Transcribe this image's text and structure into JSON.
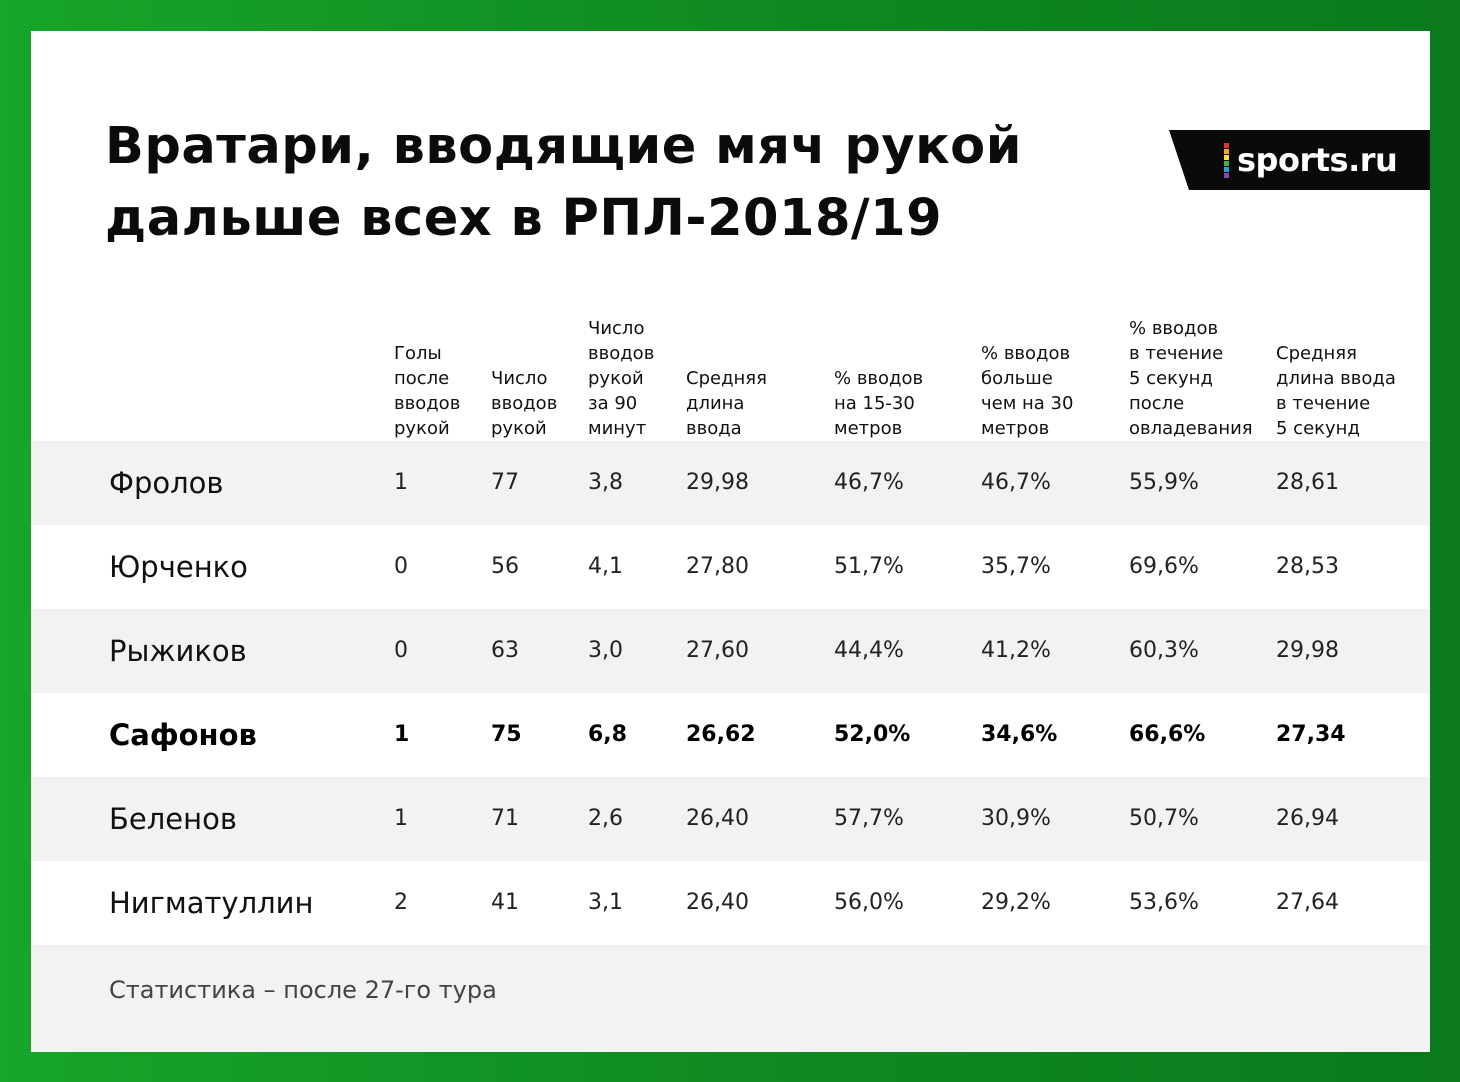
{
  "title_line1": "Вратари, вводящие мяч рукой",
  "title_line2": "дальше всех в РПЛ-2018/19",
  "logo": {
    "text": "sports.ru",
    "icon": "sports-ru-logo",
    "bar_colors": [
      "#e4332b",
      "#f5a623",
      "#f7e13a",
      "#3cb54a",
      "#2a9ee0",
      "#8e44ad"
    ]
  },
  "colors": {
    "frame_green": "#129a26",
    "row_shade": "#f2f2f2",
    "logo_bg": "#0a0a0a"
  },
  "chart_data": {
    "type": "table",
    "title": "Вратари, вводящие мяч рукой дальше всех в РПЛ-2018/19",
    "columns": [
      "",
      "Голы\nпосле\nвводов\nрукой",
      "Число\nвводов\nрукой",
      "Число\nвводов\nрукой\nза 90\nминут",
      "Средняя\nдлина\nввода",
      "% вводов\nна 15-30\nметров",
      "% вводов\nбольше\nчем на 30\nметров",
      "% вводов\nв течение\n5 секунд\nпосле\nовладевания",
      "Средняя\nдлина ввода\nв течение\n5 секунд"
    ],
    "rows": [
      {
        "name": "Фролов",
        "values": [
          "1",
          "77",
          "3,8",
          "29,98",
          "46,7%",
          "46,7%",
          "55,9%",
          "28,61"
        ],
        "highlight": false
      },
      {
        "name": "Юрченко",
        "values": [
          "0",
          "56",
          "4,1",
          "27,80",
          "51,7%",
          "35,7%",
          "69,6%",
          "28,53"
        ],
        "highlight": false
      },
      {
        "name": "Рыжиков",
        "values": [
          "0",
          "63",
          "3,0",
          "27,60",
          "44,4%",
          "41,2%",
          "60,3%",
          "29,98"
        ],
        "highlight": false
      },
      {
        "name": "Сафонов",
        "values": [
          "1",
          "75",
          "6,8",
          "26,62",
          "52,0%",
          "34,6%",
          "66,6%",
          "27,34"
        ],
        "highlight": true
      },
      {
        "name": "Беленов",
        "values": [
          "1",
          "71",
          "2,6",
          "26,40",
          "57,7%",
          "30,9%",
          "50,7%",
          "26,94"
        ],
        "highlight": false
      },
      {
        "name": "Нигматуллин",
        "values": [
          "2",
          "41",
          "3,1",
          "26,40",
          "56,0%",
          "29,2%",
          "53,6%",
          "27,64"
        ],
        "highlight": false
      }
    ]
  },
  "footer": "Статистика – после 27-го тура"
}
